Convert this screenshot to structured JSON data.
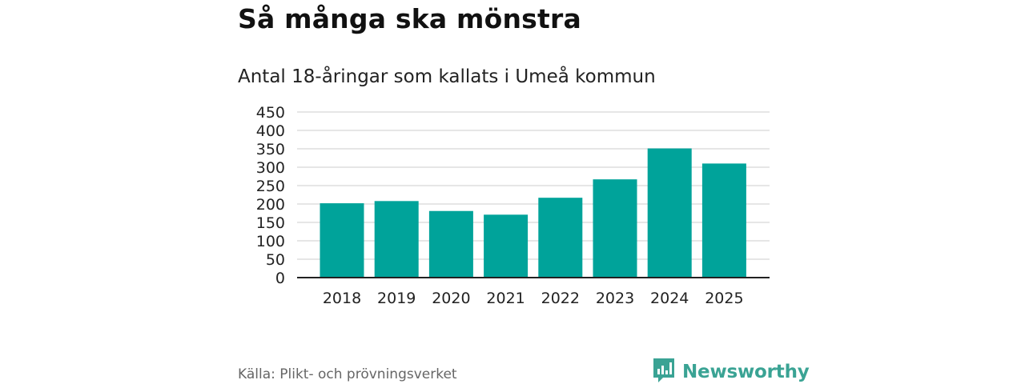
{
  "chart_data": {
    "type": "bar",
    "title": "Så många ska mönstra",
    "subtitle": "Antal 18-åringar som kallats i Umeå kommun",
    "categories": [
      "2018",
      "2019",
      "2020",
      "2021",
      "2022",
      "2023",
      "2024",
      "2025"
    ],
    "values": [
      202,
      208,
      181,
      171,
      217,
      267,
      351,
      310
    ],
    "yticks": [
      "0",
      "50",
      "100",
      "150",
      "200",
      "250",
      "300",
      "350",
      "400",
      "450"
    ],
    "ylim": [
      0,
      450
    ],
    "xlabel": "",
    "ylabel": "",
    "grid": true,
    "bar_color": "#00a39a"
  },
  "footer": {
    "source": "Källa: Plikt- och prövningsverket",
    "brand": "Newsworthy",
    "brand_color": "#3aa394",
    "brand_icon": "bar-chart-speech-icon"
  }
}
